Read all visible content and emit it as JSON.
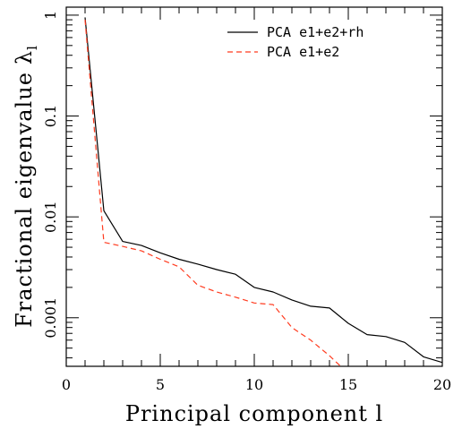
{
  "chart_data": {
    "type": "line",
    "xlabel": "Principal component l",
    "ylabel": "Fractional eigenvalue",
    "ylabel_symbol": "λ",
    "ylabel_subscript": "l",
    "xlim": [
      0,
      20
    ],
    "ylim": [
      0.00033,
      1.2
    ],
    "yscale": "log",
    "x_ticks": [
      0,
      5,
      10,
      15,
      20
    ],
    "x_tick_labels": [
      "0",
      "5",
      "10",
      "15",
      "20"
    ],
    "y_ticks": [
      0.001,
      0.01,
      0.1,
      1
    ],
    "y_tick_labels": [
      "0.001",
      "0.01",
      "0.1",
      "1"
    ],
    "grid": false,
    "legend_position": "top-right",
    "series": [
      {
        "name": "PCA e1+e2+rh",
        "color": "#000000",
        "dash": "solid",
        "x": [
          1,
          2,
          3,
          4,
          5,
          6,
          7,
          8,
          9,
          10,
          11,
          12,
          13,
          14,
          15,
          16,
          17,
          18,
          19,
          20
        ],
        "y": [
          0.95,
          0.0115,
          0.0057,
          0.0052,
          0.0044,
          0.0038,
          0.0034,
          0.003,
          0.0027,
          0.002,
          0.0018,
          0.0015,
          0.0013,
          0.00125,
          0.00088,
          0.00068,
          0.00065,
          0.00057,
          0.00041,
          0.00036
        ]
      },
      {
        "name": "PCA e1+e2",
        "color": "#ff3b1f",
        "dash": "dashed",
        "x": [
          1,
          2,
          3,
          4,
          5,
          6,
          7,
          8,
          9,
          10,
          11,
          12,
          13,
          14,
          15
        ],
        "y": [
          0.9,
          0.0056,
          0.0051,
          0.0046,
          0.0038,
          0.0032,
          0.0021,
          0.0018,
          0.0016,
          0.0014,
          0.00135,
          0.0008,
          0.0006,
          0.00042,
          0.00028
        ]
      }
    ]
  }
}
